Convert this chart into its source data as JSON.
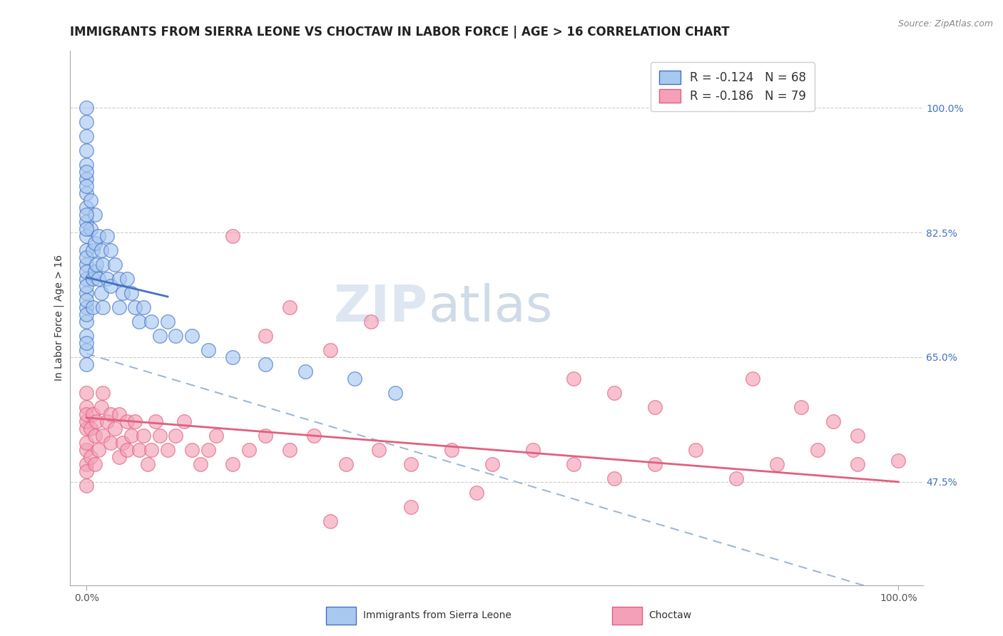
{
  "title": "IMMIGRANTS FROM SIERRA LEONE VS CHOCTAW IN LABOR FORCE | AGE > 16 CORRELATION CHART",
  "source": "Source: ZipAtlas.com",
  "ylabel": "In Labor Force | Age > 16",
  "legend_label_1": "Immigrants from Sierra Leone",
  "legend_label_2": "Choctaw",
  "r1": -0.124,
  "n1": 68,
  "r2": -0.186,
  "n2": 79,
  "color_blue_fill": "#a8c8f0",
  "color_blue_edge": "#4472c4",
  "color_pink_fill": "#f4a0b8",
  "color_pink_edge": "#e06080",
  "color_dashed": "#a0b8d0",
  "xlim_min": -0.02,
  "xlim_max": 1.03,
  "ylim_min": 0.33,
  "ylim_max": 1.08,
  "right_yticks": [
    0.475,
    0.65,
    0.825,
    1.0
  ],
  "right_yticklabels": [
    "47.5%",
    "65.0%",
    "82.5%",
    "100.0%"
  ],
  "xtick_positions": [
    0.0,
    1.0
  ],
  "xticklabels": [
    "0.0%",
    "100.0%"
  ],
  "watermark_zip": "ZIP",
  "watermark_atlas": "atlas",
  "title_fontsize": 12,
  "tick_fontsize": 10,
  "blue_x": [
    0.0,
    0.0,
    0.0,
    0.0,
    0.0,
    0.0,
    0.0,
    0.0,
    0.0,
    0.0,
    0.0,
    0.0,
    0.0,
    0.0,
    0.0,
    0.0,
    0.0,
    0.0,
    0.0,
    0.0,
    0.0,
    0.0,
    0.0,
    0.0,
    0.005,
    0.005,
    0.008,
    0.008,
    0.008,
    0.01,
    0.01,
    0.01,
    0.012,
    0.015,
    0.015,
    0.018,
    0.018,
    0.02,
    0.02,
    0.025,
    0.025,
    0.03,
    0.03,
    0.035,
    0.04,
    0.04,
    0.045,
    0.05,
    0.055,
    0.06,
    0.065,
    0.07,
    0.08,
    0.09,
    0.1,
    0.11,
    0.13,
    0.15,
    0.18,
    0.22,
    0.27,
    0.33,
    0.38,
    0.0,
    0.0,
    0.0,
    0.0,
    0.0
  ],
  "blue_y": [
    0.72,
    0.74,
    0.76,
    0.78,
    0.8,
    0.82,
    0.84,
    0.86,
    0.88,
    0.9,
    0.92,
    0.94,
    0.96,
    0.98,
    1.0,
    0.7,
    0.68,
    0.66,
    0.64,
    0.73,
    0.75,
    0.77,
    0.79,
    0.71,
    0.83,
    0.87,
    0.8,
    0.76,
    0.72,
    0.85,
    0.81,
    0.77,
    0.78,
    0.82,
    0.76,
    0.8,
    0.74,
    0.78,
    0.72,
    0.76,
    0.82,
    0.75,
    0.8,
    0.78,
    0.76,
    0.72,
    0.74,
    0.76,
    0.74,
    0.72,
    0.7,
    0.72,
    0.7,
    0.68,
    0.7,
    0.68,
    0.68,
    0.66,
    0.65,
    0.64,
    0.63,
    0.62,
    0.6,
    0.91,
    0.89,
    0.85,
    0.83,
    0.67
  ],
  "pink_x": [
    0.0,
    0.0,
    0.0,
    0.0,
    0.0,
    0.0,
    0.0,
    0.0,
    0.0,
    0.0,
    0.005,
    0.005,
    0.008,
    0.01,
    0.01,
    0.012,
    0.015,
    0.018,
    0.02,
    0.02,
    0.025,
    0.03,
    0.03,
    0.035,
    0.04,
    0.04,
    0.045,
    0.05,
    0.05,
    0.055,
    0.06,
    0.065,
    0.07,
    0.075,
    0.08,
    0.085,
    0.09,
    0.1,
    0.11,
    0.12,
    0.13,
    0.14,
    0.15,
    0.16,
    0.18,
    0.2,
    0.22,
    0.25,
    0.28,
    0.32,
    0.36,
    0.4,
    0.45,
    0.5,
    0.55,
    0.6,
    0.65,
    0.7,
    0.75,
    0.8,
    0.85,
    0.9,
    0.95,
    1.0,
    0.18,
    0.25,
    0.35,
    0.6,
    0.65,
    0.7,
    0.82,
    0.88,
    0.92,
    0.95,
    0.3,
    0.4,
    0.22,
    0.3,
    0.48
  ],
  "pink_y": [
    0.58,
    0.55,
    0.52,
    0.5,
    0.56,
    0.53,
    0.49,
    0.47,
    0.6,
    0.57,
    0.55,
    0.51,
    0.57,
    0.54,
    0.5,
    0.56,
    0.52,
    0.58,
    0.54,
    0.6,
    0.56,
    0.53,
    0.57,
    0.55,
    0.51,
    0.57,
    0.53,
    0.56,
    0.52,
    0.54,
    0.56,
    0.52,
    0.54,
    0.5,
    0.52,
    0.56,
    0.54,
    0.52,
    0.54,
    0.56,
    0.52,
    0.5,
    0.52,
    0.54,
    0.5,
    0.52,
    0.54,
    0.52,
    0.54,
    0.5,
    0.52,
    0.5,
    0.52,
    0.5,
    0.52,
    0.5,
    0.48,
    0.5,
    0.52,
    0.48,
    0.5,
    0.52,
    0.5,
    0.505,
    0.82,
    0.72,
    0.7,
    0.62,
    0.6,
    0.58,
    0.62,
    0.58,
    0.56,
    0.54,
    0.42,
    0.44,
    0.68,
    0.66,
    0.46
  ],
  "blue_line": [
    [
      0.0,
      0.1
    ],
    [
      0.762,
      0.735
    ]
  ],
  "pink_line": [
    [
      0.0,
      1.0
    ],
    [
      0.565,
      0.475
    ]
  ],
  "dash_line": [
    [
      0.0,
      1.0
    ],
    [
      0.655,
      0.315
    ]
  ]
}
